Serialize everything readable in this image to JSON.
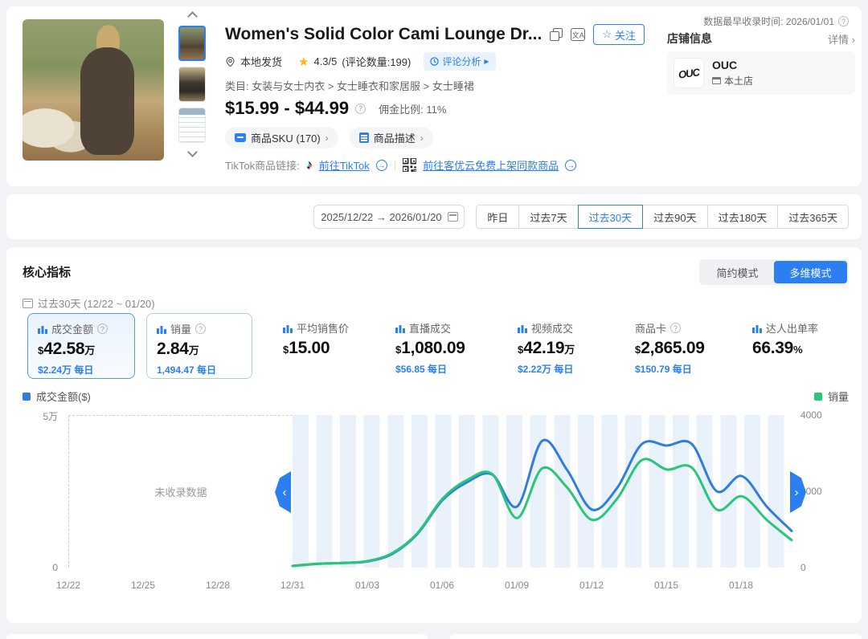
{
  "colors": {
    "accent": "#2B7FF0",
    "gmv_line": "#2F7DE0",
    "sales_line": "#29C578"
  },
  "page": {
    "recorded_since": "数据最早收录时间: 2026/01/01"
  },
  "product": {
    "title": "Women's Solid Color Cami Lounge Dr...",
    "follow": "关注",
    "shipping": "本地发货",
    "rating": "4.3/5",
    "rating_count": "(评论数量:199)",
    "review_analysis": "评论分析",
    "category": "类目: 女装与女士内衣 > 女士睡衣和家居服 > 女士睡裙",
    "price": "$15.99 - $44.99",
    "commission": "佣金比例: 11%",
    "sku_btn": "商品SKU (170)",
    "desc_btn": "商品描述",
    "tiktok_label": "TikTok商品链接:",
    "tiktok_link": "前往TikTok",
    "keyouyun_link": "前往客优云免费上架同款商品"
  },
  "store": {
    "title": "店铺信息",
    "detail": "详情",
    "name": "OUC",
    "type": "本土店"
  },
  "filter": {
    "date_range": "2025/12/22 → 2026/01/20",
    "ranges": [
      "昨日",
      "过去7天",
      "过去30天",
      "过去90天",
      "过去180天",
      "过去365天"
    ],
    "active_range": "过去30天"
  },
  "metrics": {
    "title": "核心指标",
    "mode_simple": "简约模式",
    "mode_multi": "多维模式",
    "period": "过去30天 (12/22 ~ 01/20)",
    "cards": [
      {
        "label": "成交金额",
        "prefix": "$",
        "value": "42.58",
        "suffix": "万",
        "sub": "$2.24万 每日"
      },
      {
        "label": "销量",
        "prefix": "",
        "value": "2.84",
        "suffix": "万",
        "sub": "1,494.47 每日"
      },
      {
        "label": "平均销售价",
        "prefix": "$",
        "value": "15.00",
        "suffix": "",
        "sub": ""
      },
      {
        "label": "直播成交",
        "prefix": "$",
        "value": "1,080.09",
        "suffix": "",
        "sub": "$56.85 每日"
      },
      {
        "label": "视频成交",
        "prefix": "$",
        "value": "42.19",
        "suffix": "万",
        "sub": "$2.22万 每日"
      },
      {
        "label": "商品卡",
        "prefix": "$",
        "value": "2,865.09",
        "suffix": "",
        "sub": "$150.79 每日"
      },
      {
        "label": "达人出单率",
        "prefix": "",
        "value": "66.39",
        "suffix": "%",
        "sub": ""
      }
    ]
  },
  "chart_data": {
    "type": "line",
    "no_data_label": "未收录数据",
    "x_ticks": [
      "12/22",
      "12/25",
      "12/28",
      "12/31",
      "01/03",
      "01/06",
      "01/09",
      "01/12",
      "01/15",
      "01/18"
    ],
    "left_axis": {
      "label": "成交金额($)",
      "ticks": [
        "5万",
        "0"
      ],
      "max": 50000
    },
    "right_axis": {
      "label": "销量",
      "ticks": [
        "4000",
        "2000",
        "0"
      ],
      "max": 4000
    },
    "no_data_range": [
      "12/22",
      "12/30"
    ],
    "dates": [
      "12/31",
      "01/01",
      "01/02",
      "01/03",
      "01/04",
      "01/05",
      "01/06",
      "01/07",
      "01/08",
      "01/09",
      "01/10",
      "01/11",
      "01/12",
      "01/13",
      "01/14",
      "01/15",
      "01/16",
      "01/17",
      "01/18",
      "01/19",
      "01/20"
    ],
    "series": [
      {
        "name": "成交金额($)",
        "axis": "left",
        "color": "#2F7DE0",
        "values": [
          500,
          1200,
          1500,
          2000,
          4500,
          11000,
          22000,
          28000,
          30500,
          20000,
          41500,
          32000,
          19000,
          26000,
          40500,
          40000,
          40500,
          25000,
          30000,
          20000,
          12000
        ]
      },
      {
        "name": "销量",
        "axis": "right",
        "color": "#29C578",
        "values": [
          40,
          100,
          120,
          170,
          380,
          900,
          1800,
          2300,
          2450,
          1300,
          2600,
          2100,
          1250,
          1800,
          2820,
          2570,
          2620,
          1520,
          1870,
          1250,
          720
        ]
      }
    ]
  }
}
